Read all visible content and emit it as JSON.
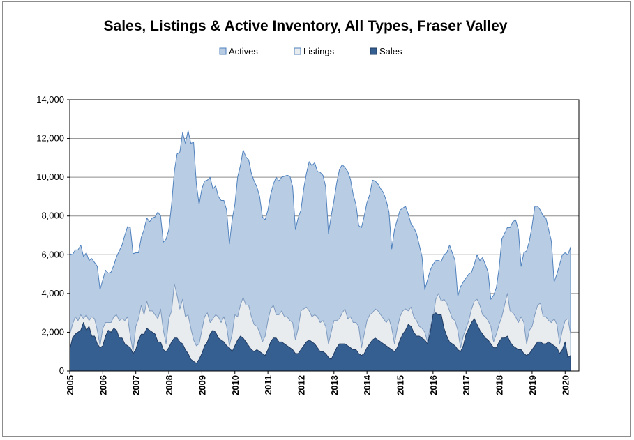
{
  "chart_data": {
    "type": "area",
    "title": "Sales, Listings & Active Inventory, All Types, Fraser Valley",
    "xlabel": "",
    "ylabel": "",
    "ylim": [
      0,
      14000
    ],
    "yticks": [
      "0",
      "2,000",
      "4,000",
      "6,000",
      "8,000",
      "10,000",
      "12,000",
      "14,000"
    ],
    "xticks": [
      "2005",
      "2006",
      "2007",
      "2008",
      "2009",
      "2010",
      "2011",
      "2012",
      "2013",
      "2014",
      "2015",
      "2016",
      "2017",
      "2018",
      "2019",
      "2020"
    ],
    "x_start": "2005-01",
    "x_end": "2020-05",
    "grid": "horizontal",
    "legend": "top",
    "legend_labels": [
      "Actives",
      "Listings",
      "Sales"
    ],
    "series": [
      {
        "name": "Actives",
        "color": "#b8cce4",
        "line_color": "#4f81bd",
        "values": [
          6050,
          6000,
          6250,
          6250,
          6500,
          5900,
          6100,
          5700,
          5800,
          5600,
          5400,
          4200,
          4700,
          5200,
          5050,
          5100,
          5450,
          5900,
          6200,
          6500,
          7000,
          7450,
          7400,
          6050,
          6100,
          6100,
          6900,
          7300,
          7900,
          7700,
          7900,
          7950,
          8200,
          8000,
          6650,
          6800,
          7300,
          8600,
          10300,
          11200,
          11300,
          12300,
          11750,
          12400,
          11750,
          11800,
          9650,
          8600,
          9400,
          9800,
          9850,
          10000,
          9400,
          9550,
          9000,
          8800,
          8800,
          8300,
          6550,
          7800,
          8600,
          10000,
          10600,
          11400,
          11050,
          10900,
          10200,
          9800,
          9500,
          9000,
          7950,
          7800,
          8300,
          9100,
          9650,
          10000,
          9800,
          10000,
          10050,
          10100,
          10050,
          9500,
          7300,
          7900,
          8300,
          9400,
          10200,
          10800,
          10600,
          10750,
          10300,
          10250,
          10100,
          9500,
          7100,
          8000,
          8800,
          9700,
          10400,
          10650,
          10500,
          10300,
          9900,
          9100,
          8600,
          7500,
          7400,
          8000,
          8700,
          9100,
          9850,
          9800,
          9650,
          9400,
          9200,
          8800,
          8200,
          6300,
          7300,
          7800,
          8300,
          8400,
          8500,
          8100,
          7600,
          7400,
          7100,
          6500,
          5900,
          4200,
          4700,
          5200,
          5500,
          5700,
          5700,
          5650,
          6000,
          6100,
          6500,
          6100,
          5700,
          3850,
          4350,
          4600,
          4800,
          5000,
          5100,
          5500,
          6000,
          5700,
          5850,
          5500,
          5100,
          3700,
          3900,
          4300,
          5300,
          6800,
          7100,
          7400,
          7400,
          7700,
          7800,
          7300,
          5400,
          6100,
          6200,
          6700,
          7500,
          8500,
          8500,
          8300,
          8000,
          7900,
          7300,
          6700,
          4600,
          5000,
          5500,
          6000,
          6100,
          6000,
          6400
        ]
      },
      {
        "name": "Listings",
        "color": "#e9ecef",
        "line_color": "#7f9bbf",
        "values": [
          1900,
          2400,
          2800,
          2600,
          2900,
          2700,
          2900,
          2600,
          2800,
          2700,
          2100,
          1300,
          2200,
          2500,
          2500,
          2500,
          2800,
          2900,
          2600,
          2700,
          2600,
          2800,
          1800,
          1000,
          2300,
          2700,
          3400,
          2900,
          3600,
          3100,
          3100,
          2900,
          2700,
          3200,
          2100,
          1400,
          2700,
          3100,
          4500,
          3900,
          3200,
          3700,
          2800,
          2900,
          2200,
          1600,
          1300,
          1400,
          2100,
          2800,
          3000,
          2500,
          2700,
          2900,
          2800,
          2500,
          2800,
          2300,
          1300,
          1900,
          2900,
          2800,
          3400,
          3800,
          3400,
          3400,
          2800,
          2400,
          2300,
          2000,
          1500,
          1800,
          2600,
          3200,
          3400,
          2900,
          2900,
          3100,
          2800,
          2800,
          2600,
          2500,
          1600,
          2200,
          3100,
          3200,
          3300,
          3100,
          2800,
          2900,
          2800,
          2500,
          2600,
          2300,
          1400,
          2000,
          2600,
          2600,
          2700,
          3000,
          3200,
          2700,
          2800,
          2500,
          2500,
          2300,
          1200,
          1900,
          2600,
          2900,
          3000,
          3200,
          3100,
          2900,
          2700,
          2500,
          2700,
          2200,
          1400,
          2200,
          2800,
          3100,
          3200,
          3100,
          3300,
          2800,
          2600,
          2300,
          2200,
          2000,
          1500,
          2300,
          2700,
          3700,
          4000,
          3600,
          3700,
          3500,
          3100,
          2700,
          2600,
          2100,
          1200,
          1800,
          2200,
          2600,
          3200,
          3600,
          3700,
          3400,
          2900,
          2800,
          2600,
          2300,
          1500,
          1900,
          2400,
          2800,
          3400,
          4000,
          3100,
          3000,
          2800,
          2500,
          2800,
          2500,
          1400,
          2100,
          2300,
          2900,
          3400,
          3500,
          2800,
          2800,
          2600,
          2500,
          2700,
          2400,
          1400,
          2100,
          2600,
          2700,
          1900
        ]
      },
      {
        "name": "Sales",
        "color": "#365f91",
        "line_color": "#1f3b63",
        "values": [
          1100,
          1700,
          1900,
          2000,
          2100,
          2500,
          2100,
          2300,
          1800,
          1800,
          1400,
          1200,
          1300,
          1800,
          2100,
          2000,
          2200,
          2100,
          1700,
          1700,
          1400,
          1300,
          1200,
          900,
          1100,
          1600,
          1900,
          1900,
          2200,
          2100,
          2000,
          1900,
          1500,
          1500,
          1100,
          1000,
          1200,
          1500,
          1700,
          1700,
          1500,
          1400,
          1100,
          900,
          600,
          500,
          400,
          600,
          900,
          1300,
          1500,
          1900,
          2100,
          2000,
          1700,
          1600,
          1500,
          1300,
          1200,
          1000,
          1300,
          1600,
          1800,
          1700,
          1500,
          1300,
          1100,
          1000,
          1100,
          1000,
          900,
          800,
          1100,
          1500,
          1700,
          1700,
          1500,
          1500,
          1400,
          1300,
          1200,
          1100,
          900,
          900,
          1100,
          1300,
          1500,
          1600,
          1500,
          1400,
          1200,
          1000,
          1000,
          900,
          700,
          600,
          900,
          1200,
          1400,
          1400,
          1400,
          1300,
          1200,
          1100,
          1100,
          900,
          800,
          900,
          1200,
          1400,
          1600,
          1700,
          1600,
          1500,
          1400,
          1300,
          1200,
          1100,
          1000,
          1200,
          1600,
          1900,
          2100,
          2400,
          2300,
          2000,
          1800,
          1800,
          1700,
          1600,
          1400,
          2000,
          2900,
          3000,
          2900,
          2900,
          2200,
          1800,
          1500,
          1400,
          1300,
          1100,
          1000,
          1300,
          1900,
          2200,
          2500,
          2700,
          2400,
          2100,
          1900,
          1700,
          1600,
          1400,
          1200,
          1200,
          1500,
          1700,
          1700,
          1800,
          1500,
          1300,
          1200,
          1100,
          1100,
          900,
          800,
          900,
          1100,
          1300,
          1500,
          1500,
          1400,
          1400,
          1500,
          1400,
          1300,
          1200,
          900,
          1100,
          1500,
          700,
          800
        ]
      }
    ]
  }
}
